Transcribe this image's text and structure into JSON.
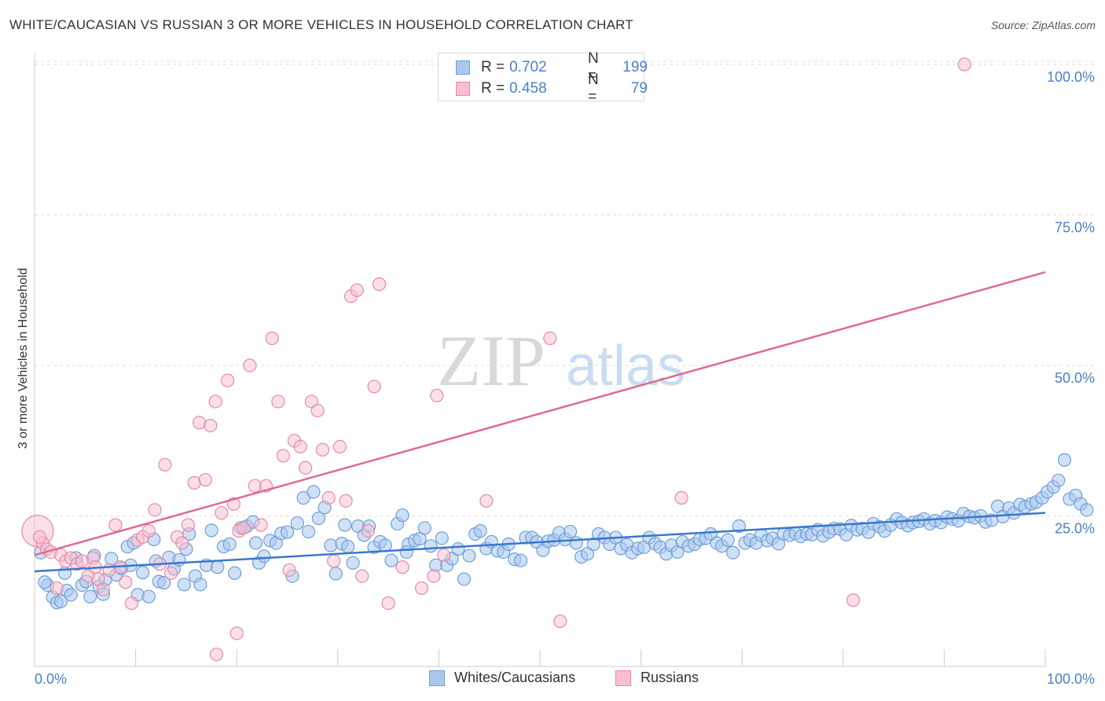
{
  "title": "WHITE/CAUCASIAN VS RUSSIAN 3 OR MORE VEHICLES IN HOUSEHOLD CORRELATION CHART",
  "source": "Source: ZipAtlas.com",
  "watermark": {
    "zip": "ZIP",
    "atlas": "atlas"
  },
  "legend": {
    "r_label": "R =",
    "n_label": "N =",
    "whites": {
      "r": "0.702",
      "n": "199"
    },
    "russians": {
      "r": "0.458",
      "n": "79"
    }
  },
  "bottom_legend": {
    "whites": "Whites/Caucasians",
    "russians": "Russians"
  },
  "colors": {
    "whites_fill": "#aac8ef",
    "whites_stroke": "#6f9fd8",
    "whites_line": "#3a78cc",
    "russians_fill": "#f7bfd0",
    "russians_stroke": "#e58aa8",
    "russians_line": "#e06a92",
    "tick_text": "#4a80cc",
    "grid": "#dddddd"
  },
  "chart_data": {
    "type": "scatter",
    "title": "WHITE/CAUCASIAN VS RUSSIAN 3 OR MORE VEHICLES IN HOUSEHOLD CORRELATION CHART",
    "xlabel": "",
    "ylabel": "3 or more Vehicles in Household",
    "xlim": [
      0,
      100
    ],
    "ylim": [
      0,
      102
    ],
    "x_tick_labels": [
      "0.0%",
      "100.0%"
    ],
    "y_ticks": [
      25,
      50,
      75,
      100
    ],
    "y_tick_labels": [
      "25.0%",
      "50.0%",
      "75.0%",
      "100.0%"
    ],
    "series": [
      {
        "name": "Whites/Caucasians",
        "trendline": {
          "x": [
            0,
            100
          ],
          "y": [
            15.8,
            25.5
          ]
        },
        "points": [
          [
            0.6,
            18.9
          ],
          [
            1.3,
            13.5
          ],
          [
            1.8,
            11.5
          ],
          [
            2.2,
            10.6
          ],
          [
            2.6,
            10.8
          ],
          [
            3.2,
            12.6
          ],
          [
            3.6,
            11.9
          ],
          [
            4.1,
            18.0
          ],
          [
            4.7,
            13.5
          ],
          [
            5.1,
            14.1
          ],
          [
            5.5,
            11.6
          ],
          [
            5.9,
            18.4
          ],
          [
            6.4,
            13.3
          ],
          [
            7.0,
            14.4
          ],
          [
            7.6,
            17.9
          ],
          [
            8.1,
            15.2
          ],
          [
            8.6,
            16.3
          ],
          [
            9.2,
            19.9
          ],
          [
            9.8,
            20.5
          ],
          [
            10.2,
            11.9
          ],
          [
            10.7,
            15.6
          ],
          [
            11.3,
            11.6
          ],
          [
            11.8,
            21.1
          ],
          [
            12.3,
            14.1
          ],
          [
            12.8,
            13.9
          ],
          [
            13.3,
            18.1
          ],
          [
            13.8,
            16.2
          ],
          [
            14.3,
            17.7
          ],
          [
            14.8,
            13.6
          ],
          [
            15.3,
            22.0
          ],
          [
            15.9,
            15.0
          ],
          [
            16.4,
            13.6
          ],
          [
            17.0,
            16.8
          ],
          [
            17.5,
            22.6
          ],
          [
            18.1,
            16.5
          ],
          [
            18.7,
            19.9
          ],
          [
            19.3,
            20.3
          ],
          [
            19.8,
            15.5
          ],
          [
            20.4,
            23.0
          ],
          [
            21.0,
            23.3
          ],
          [
            21.6,
            24.0
          ],
          [
            22.2,
            17.2
          ],
          [
            22.7,
            18.3
          ],
          [
            23.3,
            20.9
          ],
          [
            23.9,
            20.5
          ],
          [
            24.4,
            22.1
          ],
          [
            25.0,
            22.3
          ],
          [
            25.5,
            15.0
          ],
          [
            26.0,
            23.8
          ],
          [
            26.6,
            28.0
          ],
          [
            27.1,
            22.4
          ],
          [
            27.6,
            29.0
          ],
          [
            28.1,
            24.6
          ],
          [
            28.7,
            26.4
          ],
          [
            29.3,
            20.1
          ],
          [
            29.8,
            15.4
          ],
          [
            30.4,
            20.4
          ],
          [
            31.0,
            19.9
          ],
          [
            31.5,
            17.2
          ],
          [
            32.0,
            23.3
          ],
          [
            32.6,
            21.8
          ],
          [
            33.1,
            23.3
          ],
          [
            33.6,
            19.8
          ],
          [
            34.2,
            20.7
          ],
          [
            34.7,
            20.1
          ],
          [
            35.3,
            17.6
          ],
          [
            35.9,
            23.7
          ],
          [
            36.4,
            25.1
          ],
          [
            37.0,
            20.3
          ],
          [
            37.6,
            20.9
          ],
          [
            38.1,
            21.2
          ],
          [
            38.6,
            23.0
          ],
          [
            39.2,
            20.0
          ],
          [
            39.7,
            16.8
          ],
          [
            40.3,
            21.3
          ],
          [
            40.8,
            16.8
          ],
          [
            41.3,
            17.9
          ],
          [
            41.9,
            19.5
          ],
          [
            42.5,
            14.5
          ],
          [
            43.0,
            18.4
          ],
          [
            43.6,
            22.0
          ],
          [
            44.1,
            22.5
          ],
          [
            44.7,
            19.6
          ],
          [
            45.2,
            20.7
          ],
          [
            45.8,
            19.2
          ],
          [
            46.4,
            19.0
          ],
          [
            46.9,
            20.3
          ],
          [
            47.5,
            17.8
          ],
          [
            48.1,
            17.6
          ],
          [
            48.6,
            21.4
          ],
          [
            49.2,
            21.4
          ],
          [
            49.7,
            20.7
          ],
          [
            50.3,
            19.3
          ],
          [
            50.8,
            20.8
          ],
          [
            51.4,
            21.0
          ],
          [
            51.9,
            22.2
          ],
          [
            52.5,
            21.1
          ],
          [
            53.0,
            22.4
          ],
          [
            53.6,
            20.5
          ],
          [
            54.1,
            18.2
          ],
          [
            54.7,
            18.7
          ],
          [
            55.3,
            20.3
          ],
          [
            55.8,
            22.0
          ],
          [
            56.4,
            21.4
          ],
          [
            56.9,
            20.3
          ],
          [
            57.5,
            21.4
          ],
          [
            58.0,
            19.6
          ],
          [
            58.6,
            20.2
          ],
          [
            59.1,
            18.9
          ],
          [
            59.7,
            19.6
          ],
          [
            60.3,
            19.8
          ],
          [
            60.8,
            21.4
          ],
          [
            61.4,
            20.4
          ],
          [
            61.9,
            19.8
          ],
          [
            62.5,
            18.7
          ],
          [
            63.0,
            20.1
          ],
          [
            63.6,
            19.0
          ],
          [
            64.1,
            20.7
          ],
          [
            64.7,
            20.0
          ],
          [
            65.3,
            20.3
          ],
          [
            65.8,
            21.1
          ],
          [
            66.4,
            21.3
          ],
          [
            66.9,
            22.0
          ],
          [
            67.5,
            20.5
          ],
          [
            68.0,
            20.0
          ],
          [
            68.6,
            21.0
          ],
          [
            69.1,
            18.9
          ],
          [
            69.7,
            23.3
          ],
          [
            70.3,
            20.5
          ],
          [
            70.8,
            21.0
          ],
          [
            71.4,
            20.5
          ],
          [
            71.9,
            21.8
          ],
          [
            72.5,
            20.9
          ],
          [
            73.0,
            21.3
          ],
          [
            73.6,
            20.4
          ],
          [
            74.1,
            22.0
          ],
          [
            74.7,
            21.8
          ],
          [
            75.3,
            22.1
          ],
          [
            75.8,
            21.6
          ],
          [
            76.4,
            22.0
          ],
          [
            76.9,
            21.9
          ],
          [
            77.5,
            22.7
          ],
          [
            78.0,
            21.7
          ],
          [
            78.6,
            22.3
          ],
          [
            79.1,
            22.9
          ],
          [
            79.7,
            22.8
          ],
          [
            80.3,
            21.9
          ],
          [
            80.8,
            23.4
          ],
          [
            81.4,
            22.7
          ],
          [
            81.9,
            22.9
          ],
          [
            82.5,
            22.3
          ],
          [
            83.0,
            23.7
          ],
          [
            83.6,
            23.2
          ],
          [
            84.1,
            22.5
          ],
          [
            84.7,
            23.5
          ],
          [
            85.3,
            24.5
          ],
          [
            85.8,
            23.9
          ],
          [
            86.4,
            23.4
          ],
          [
            86.9,
            23.9
          ],
          [
            87.5,
            24.1
          ],
          [
            88.0,
            24.5
          ],
          [
            88.6,
            23.7
          ],
          [
            89.1,
            24.2
          ],
          [
            89.7,
            23.9
          ],
          [
            90.3,
            24.8
          ],
          [
            90.8,
            24.5
          ],
          [
            91.4,
            24.2
          ],
          [
            91.9,
            25.4
          ],
          [
            92.5,
            24.9
          ],
          [
            93.0,
            24.7
          ],
          [
            93.6,
            25.0
          ],
          [
            94.1,
            24.0
          ],
          [
            94.7,
            24.3
          ],
          [
            95.3,
            26.6
          ],
          [
            95.8,
            24.9
          ],
          [
            96.4,
            26.3
          ],
          [
            96.9,
            25.5
          ],
          [
            97.5,
            26.9
          ],
          [
            98.0,
            26.5
          ],
          [
            98.6,
            27.0
          ],
          [
            99.1,
            27.3
          ],
          [
            99.7,
            28.0
          ],
          [
            100.2,
            29.0
          ],
          [
            100.8,
            29.8
          ],
          [
            101.3,
            30.9
          ],
          [
            101.9,
            34.3
          ],
          [
            102.4,
            27.8
          ],
          [
            103.0,
            28.4
          ],
          [
            103.5,
            27.0
          ],
          [
            104.1,
            26.0
          ],
          [
            1.0,
            14.0
          ],
          [
            3.0,
            15.5
          ],
          [
            6.8,
            12.0
          ],
          [
            9.5,
            16.8
          ],
          [
            12.0,
            17.5
          ],
          [
            15.0,
            19.5
          ],
          [
            21.9,
            20.5
          ],
          [
            30.7,
            23.5
          ],
          [
            36.8,
            19.0
          ]
        ]
      },
      {
        "name": "Russians",
        "trendline": {
          "x": [
            0,
            100
          ],
          "y": [
            18.5,
            65.5
          ]
        },
        "points": [
          [
            0.3,
            22.5
          ],
          [
            0.8,
            20.5
          ],
          [
            1.2,
            19.5
          ],
          [
            1.6,
            19.0
          ],
          [
            2.2,
            13.0
          ],
          [
            2.6,
            18.5
          ],
          [
            3.1,
            17.5
          ],
          [
            3.6,
            18.0
          ],
          [
            4.2,
            17.0
          ],
          [
            4.7,
            17.5
          ],
          [
            5.3,
            15.0
          ],
          [
            5.8,
            18.0
          ],
          [
            6.3,
            14.5
          ],
          [
            6.8,
            12.8
          ],
          [
            7.4,
            16.0
          ],
          [
            8.0,
            23.5
          ],
          [
            8.5,
            16.5
          ],
          [
            9.0,
            14.0
          ],
          [
            9.6,
            10.5
          ],
          [
            10.2,
            21.0
          ],
          [
            10.7,
            21.5
          ],
          [
            11.3,
            22.5
          ],
          [
            11.9,
            26.0
          ],
          [
            12.4,
            17.0
          ],
          [
            12.9,
            33.5
          ],
          [
            13.5,
            15.5
          ],
          [
            14.1,
            21.5
          ],
          [
            14.6,
            20.5
          ],
          [
            15.2,
            23.5
          ],
          [
            15.8,
            30.5
          ],
          [
            16.3,
            40.5
          ],
          [
            16.9,
            31.0
          ],
          [
            17.4,
            40.0
          ],
          [
            17.9,
            44.0
          ],
          [
            18.5,
            25.5
          ],
          [
            19.1,
            47.5
          ],
          [
            19.7,
            27.0
          ],
          [
            20.2,
            22.5
          ],
          [
            20.7,
            23.0
          ],
          [
            21.3,
            50.0
          ],
          [
            21.8,
            30.0
          ],
          [
            22.4,
            23.5
          ],
          [
            22.9,
            30.0
          ],
          [
            23.5,
            54.5
          ],
          [
            24.1,
            44.0
          ],
          [
            24.6,
            35.0
          ],
          [
            25.2,
            16.0
          ],
          [
            25.7,
            37.5
          ],
          [
            26.3,
            36.5
          ],
          [
            26.8,
            33.0
          ],
          [
            27.4,
            44.0
          ],
          [
            28.0,
            42.5
          ],
          [
            28.5,
            36.0
          ],
          [
            29.1,
            28.0
          ],
          [
            29.6,
            17.5
          ],
          [
            30.2,
            36.5
          ],
          [
            30.8,
            27.5
          ],
          [
            31.3,
            61.5
          ],
          [
            31.9,
            62.5
          ],
          [
            32.4,
            15.0
          ],
          [
            33.0,
            22.5
          ],
          [
            33.6,
            46.5
          ],
          [
            34.1,
            63.5
          ],
          [
            35.0,
            10.5
          ],
          [
            36.4,
            16.5
          ],
          [
            38.3,
            13.0
          ],
          [
            39.5,
            15.0
          ],
          [
            39.8,
            45.0
          ],
          [
            40.5,
            18.5
          ],
          [
            44.7,
            27.5
          ],
          [
            51.0,
            54.5
          ],
          [
            52.0,
            7.5
          ],
          [
            64.0,
            28.0
          ],
          [
            81.0,
            11.0
          ],
          [
            92.0,
            100.0
          ],
          [
            18.0,
            2.0
          ],
          [
            20.0,
            5.5
          ],
          [
            0.5,
            21.5
          ],
          [
            6.0,
            16.5
          ]
        ]
      }
    ]
  }
}
